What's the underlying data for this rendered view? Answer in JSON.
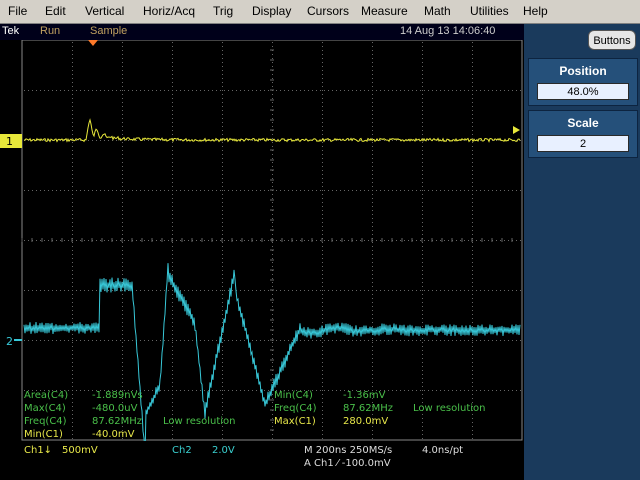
{
  "menu": [
    "File",
    "Edit",
    "Vertical",
    "Horiz/Acq",
    "Trig",
    "Display",
    "Cursors",
    "Measure",
    "Math",
    "Utilities",
    "Help"
  ],
  "status": {
    "brand": "Tek",
    "run": "Run",
    "mode": "Sample",
    "datetime": "14 Aug 13 14:06:40"
  },
  "panel": {
    "buttons_label": "Buttons",
    "position": {
      "label": "Position",
      "value": "48.0%"
    },
    "scale": {
      "label": "Scale",
      "value": "2"
    }
  },
  "markers": {
    "ch1": "1",
    "ch2": "2"
  },
  "measurements": {
    "left": [
      {
        "label": "Area(C4)",
        "value": "-1.889nVs"
      },
      {
        "label": "Max(C4)",
        "value": "-480.0uV"
      },
      {
        "label": "Freq(C4)",
        "value": "87.62MHz",
        "note": "Low resolution"
      },
      {
        "label": "Min(C1)",
        "value": "-40.0mV"
      }
    ],
    "right": [
      {
        "label": "Min(C4)",
        "value": "-1.36mV"
      },
      {
        "label": "Freq(C4)",
        "value": "87.62MHz",
        "note": "Low resolution"
      },
      {
        "label": "Max(C1)",
        "value": "280.0mV"
      }
    ]
  },
  "bottom": {
    "ch1": "Ch1↓",
    "ch1_scale": "500mV",
    "ch2": "Ch2",
    "ch2_scale": "2.0V",
    "timebase": "M 200ns 250MS/s",
    "pts": "4.0ns/pt",
    "trigger": "A  Ch1  ⁄  -100.0mV"
  },
  "colors": {
    "ch1": "#e8e83a",
    "ch2": "#38c8d8",
    "panel": "#1a3a5c",
    "meas": "#4ac04a"
  }
}
